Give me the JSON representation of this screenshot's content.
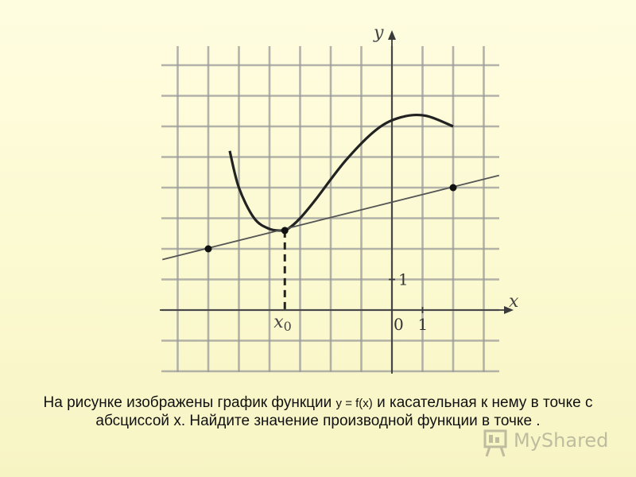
{
  "chart_data": {
    "type": "line",
    "title": "",
    "xlabel": "x",
    "ylabel": "y",
    "xlim": [
      -7.5,
      3.5
    ],
    "ylim": [
      -2.5,
      8.5
    ],
    "grid": true,
    "tick_labels": {
      "x_zero": "0",
      "x_one": "1",
      "y_one": "1",
      "x0": "x",
      "x0_sub": "0"
    },
    "series": [
      {
        "kind": "curve",
        "x": [
          -5.3,
          -5.0,
          -4.5,
          -4.0,
          -3.6,
          -3.4,
          -3.0,
          -2.5,
          -1.5,
          -0.5,
          0.3,
          1.1,
          2.0
        ],
        "y": [
          5.2,
          4.0,
          3.0,
          2.65,
          2.6,
          2.65,
          3.0,
          3.6,
          4.9,
          5.9,
          6.3,
          6.35,
          6.0
        ]
      },
      {
        "kind": "tangent",
        "x": [
          -7.5,
          3.5
        ],
        "y": [
          1.65,
          4.4
        ]
      }
    ],
    "points": [
      {
        "name": "tangent-point-left",
        "x": -6,
        "y": 2
      },
      {
        "name": "tangency-point",
        "x": -3.5,
        "y": 2.6
      },
      {
        "name": "tangent-point-right",
        "x": 2,
        "y": 4
      }
    ],
    "x0_marker": -3.5
  },
  "caption": {
    "part1": "На рисунке изображены график функции ",
    "fx": "y = f(x)",
    "part2": " и касательная к нему в точке с абсциссой  x. Найдите значение производной функции   в точке  ."
  },
  "watermark": {
    "text": "MyShared",
    "icon": "projector-screen-icon"
  }
}
